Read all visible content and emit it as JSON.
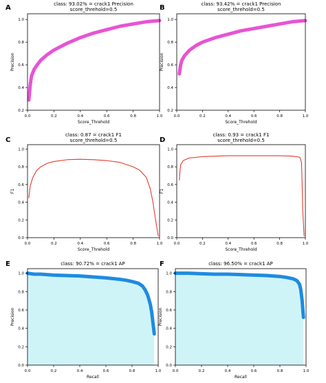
{
  "chart_data": [
    {
      "panel": "A",
      "type": "line",
      "title": "class: 93.02% = crack1 Precision",
      "subtitle": "score_threhold=0.5",
      "xlabel": "Score_Threhold",
      "ylabel": "Precision",
      "xlim": [
        0,
        1
      ],
      "ylim": [
        0.2,
        1.05
      ],
      "xticks": [
        0.0,
        0.2,
        0.4,
        0.6,
        0.8,
        1.0
      ],
      "yticks": [
        0.2,
        0.4,
        0.6,
        0.8,
        1.0
      ],
      "color": "#e754d4",
      "line_width": "thick",
      "fill": false,
      "x": [
        0.01,
        0.015,
        0.02,
        0.03,
        0.05,
        0.08,
        0.1,
        0.15,
        0.2,
        0.3,
        0.4,
        0.5,
        0.6,
        0.7,
        0.8,
        0.9,
        1.0
      ],
      "y": [
        0.29,
        0.35,
        0.42,
        0.5,
        0.56,
        0.61,
        0.64,
        0.69,
        0.73,
        0.79,
        0.84,
        0.88,
        0.91,
        0.94,
        0.96,
        0.98,
        0.99
      ]
    },
    {
      "panel": "B",
      "type": "line",
      "title": "class: 93.42% = crack1 Precision",
      "subtitle": "score_threhold=0.5",
      "xlabel": "Score_Threhold",
      "ylabel": "Precision",
      "xlim": [
        0,
        1
      ],
      "ylim": [
        0.2,
        1.05
      ],
      "xticks": [
        0.0,
        0.2,
        0.4,
        0.6,
        0.8,
        1.0
      ],
      "yticks": [
        0.2,
        0.4,
        0.6,
        0.8,
        1.0
      ],
      "color": "#e754d4",
      "line_width": "thick",
      "fill": false,
      "x": [
        0.02,
        0.025,
        0.03,
        0.04,
        0.06,
        0.1,
        0.15,
        0.2,
        0.3,
        0.4,
        0.5,
        0.6,
        0.7,
        0.8,
        0.9,
        1.0
      ],
      "y": [
        0.52,
        0.56,
        0.6,
        0.64,
        0.68,
        0.73,
        0.77,
        0.8,
        0.84,
        0.87,
        0.9,
        0.92,
        0.94,
        0.96,
        0.98,
        0.99
      ]
    },
    {
      "panel": "C",
      "type": "line",
      "title": "class: 0.87 = crack1 F1",
      "subtitle": "score_threhold=0.5",
      "xlabel": "Score_Threhold",
      "ylabel": "F1",
      "xlim": [
        0,
        1
      ],
      "ylim": [
        0,
        1.05
      ],
      "xticks": [
        0.0,
        0.2,
        0.4,
        0.6,
        0.8,
        1.0
      ],
      "yticks": [
        0.0,
        0.2,
        0.4,
        0.6,
        0.8,
        1.0
      ],
      "color": "#e8392b",
      "line_width": "thin",
      "fill": false,
      "x": [
        0.01,
        0.02,
        0.04,
        0.07,
        0.1,
        0.15,
        0.2,
        0.3,
        0.4,
        0.5,
        0.6,
        0.7,
        0.8,
        0.85,
        0.9,
        0.93,
        0.95,
        0.97,
        0.99
      ],
      "y": [
        0.45,
        0.58,
        0.68,
        0.76,
        0.8,
        0.84,
        0.86,
        0.88,
        0.885,
        0.88,
        0.87,
        0.85,
        0.8,
        0.76,
        0.68,
        0.55,
        0.4,
        0.2,
        0.02
      ]
    },
    {
      "panel": "D",
      "type": "line",
      "title": "class: 0.93 = crack1 F1",
      "subtitle": "score_threhold=0.5",
      "xlabel": "Score_Threhold",
      "ylabel": "F1",
      "xlim": [
        0,
        1
      ],
      "ylim": [
        0,
        1.05
      ],
      "xticks": [
        0.0,
        0.2,
        0.4,
        0.6,
        0.8,
        1.0
      ],
      "yticks": [
        0.0,
        0.2,
        0.4,
        0.6,
        0.8,
        1.0
      ],
      "color": "#e8392b",
      "line_width": "thin",
      "fill": false,
      "x": [
        0.02,
        0.025,
        0.03,
        0.05,
        0.08,
        0.1,
        0.2,
        0.3,
        0.4,
        0.5,
        0.6,
        0.7,
        0.8,
        0.9,
        0.95,
        0.96,
        0.97,
        0.975,
        0.98,
        0.99
      ],
      "y": [
        0.65,
        0.75,
        0.82,
        0.87,
        0.89,
        0.9,
        0.915,
        0.92,
        0.925,
        0.925,
        0.925,
        0.925,
        0.925,
        0.92,
        0.91,
        0.9,
        0.85,
        0.6,
        0.3,
        0.02
      ]
    },
    {
      "panel": "E",
      "type": "area",
      "title": "class: 90.72% = crack1 AP",
      "subtitle": "",
      "xlabel": "Recall",
      "ylabel": "Precision",
      "xlim": [
        0,
        1.0
      ],
      "ylim": [
        0,
        1.05
      ],
      "xticks": [
        0.0,
        0.2,
        0.4,
        0.6,
        0.8,
        1.0
      ],
      "yticks": [
        0.0,
        0.2,
        0.4,
        0.6,
        0.8,
        1.0
      ],
      "color": "#1f8be0",
      "fill_color": "#cff4f7",
      "line_width": "thick",
      "fill": true,
      "x": [
        0.0,
        0.05,
        0.1,
        0.2,
        0.3,
        0.4,
        0.5,
        0.6,
        0.7,
        0.75,
        0.8,
        0.85,
        0.88,
        0.9,
        0.92,
        0.94,
        0.95,
        0.96,
        0.97
      ],
      "y": [
        1.0,
        0.99,
        0.99,
        0.98,
        0.975,
        0.97,
        0.96,
        0.95,
        0.935,
        0.925,
        0.91,
        0.89,
        0.86,
        0.82,
        0.76,
        0.66,
        0.58,
        0.46,
        0.34
      ]
    },
    {
      "panel": "F",
      "type": "area",
      "title": "class: 96.50% = crack1 AP",
      "subtitle": "",
      "xlabel": "Recall",
      "ylabel": "Precision",
      "xlim": [
        0,
        1.0
      ],
      "ylim": [
        0,
        1.05
      ],
      "xticks": [
        0.0,
        0.2,
        0.4,
        0.6,
        0.8,
        1.0
      ],
      "yticks": [
        0.0,
        0.2,
        0.4,
        0.6,
        0.8,
        1.0
      ],
      "color": "#1f8be0",
      "fill_color": "#cff4f7",
      "line_width": "thick",
      "fill": true,
      "x": [
        0.0,
        0.1,
        0.2,
        0.3,
        0.4,
        0.5,
        0.6,
        0.7,
        0.8,
        0.85,
        0.9,
        0.93,
        0.95,
        0.96,
        0.97,
        0.98
      ],
      "y": [
        1.0,
        1.0,
        0.995,
        0.99,
        0.99,
        0.985,
        0.98,
        0.975,
        0.965,
        0.955,
        0.94,
        0.92,
        0.88,
        0.82,
        0.7,
        0.52
      ]
    }
  ]
}
